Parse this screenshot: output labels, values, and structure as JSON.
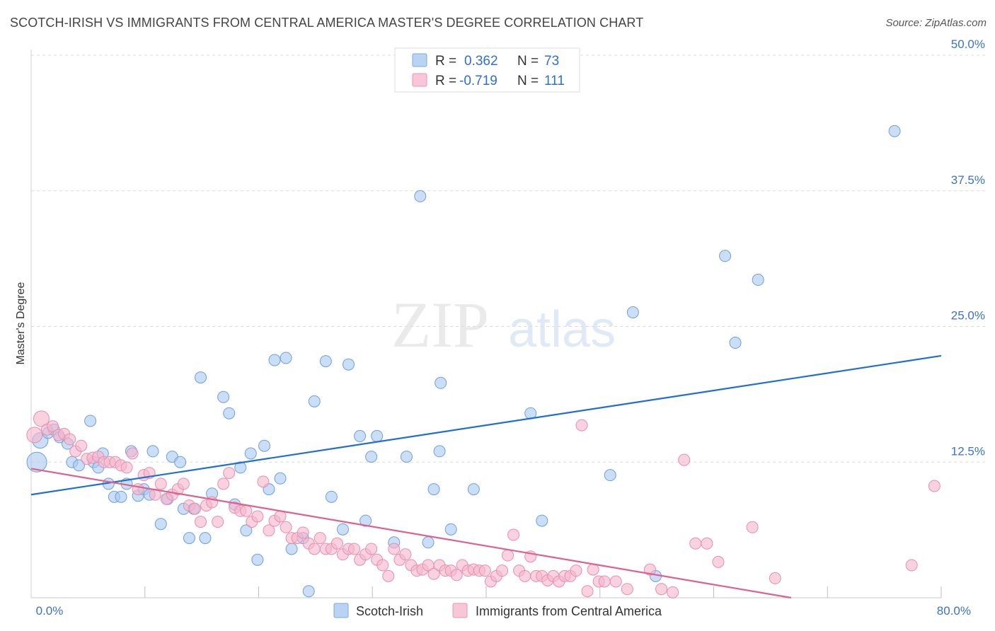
{
  "title": "SCOTCH-IRISH VS IMMIGRANTS FROM CENTRAL AMERICA MASTER'S DEGREE CORRELATION CHART",
  "source": "Source: ZipAtlas.com",
  "watermark": {
    "zip": "ZIP",
    "atlas": "atlas"
  },
  "colors": {
    "blue": "#1f6fd1",
    "blue_fill": "#a9c9f0",
    "pink": "#e0608c",
    "pink_fill": "#f4b6cb",
    "axis_value": "#3b73c4"
  },
  "legend_top": [
    {
      "r_label": "R =",
      "r_value": "0.362",
      "n_label": "N =",
      "n_value": "73"
    },
    {
      "r_label": "R =",
      "r_value": "-0.719",
      "n_label": "N =",
      "n_value": "111"
    }
  ],
  "chart_data": {
    "type": "scatter",
    "ylabel": "Master's Degree",
    "xlim": [
      0,
      80
    ],
    "ylim": [
      0,
      50
    ],
    "x_tick_labels": [
      "0.0%",
      "80.0%"
    ],
    "y_ticks": [
      12.5,
      25.0,
      37.5,
      50.0
    ],
    "y_tick_labels": [
      "12.5%",
      "25.0%",
      "37.5%",
      "50.0%"
    ],
    "grid": true,
    "legend_position": "bottom",
    "series": [
      {
        "name": "Scotch-Irish",
        "color": "blue",
        "trend": {
          "x": [
            0,
            80
          ],
          "y": [
            9.5,
            22.3
          ]
        },
        "points": [
          [
            0.5,
            12.5
          ],
          [
            0.8,
            14.5
          ],
          [
            1.5,
            15.2
          ],
          [
            2.0,
            15.5
          ],
          [
            2.5,
            14.8
          ],
          [
            3.2,
            14.2
          ],
          [
            3.6,
            12.5
          ],
          [
            4.2,
            12.2
          ],
          [
            5.2,
            16.3
          ],
          [
            5.5,
            12.5
          ],
          [
            5.9,
            12.0
          ],
          [
            6.3,
            13.3
          ],
          [
            6.8,
            10.5
          ],
          [
            7.3,
            9.3
          ],
          [
            7.9,
            9.3
          ],
          [
            8.4,
            10.5
          ],
          [
            8.8,
            13.5
          ],
          [
            9.4,
            9.4
          ],
          [
            9.9,
            10.0
          ],
          [
            10.4,
            9.5
          ],
          [
            10.7,
            13.5
          ],
          [
            11.4,
            6.8
          ],
          [
            12.0,
            9.1
          ],
          [
            12.4,
            13.0
          ],
          [
            13.1,
            12.5
          ],
          [
            13.4,
            8.2
          ],
          [
            13.9,
            5.5
          ],
          [
            14.3,
            8.2
          ],
          [
            14.9,
            20.3
          ],
          [
            15.3,
            5.5
          ],
          [
            15.9,
            9.6
          ],
          [
            16.9,
            18.5
          ],
          [
            17.4,
            17.0
          ],
          [
            17.9,
            8.6
          ],
          [
            18.4,
            12.0
          ],
          [
            18.9,
            6.2
          ],
          [
            19.3,
            13.3
          ],
          [
            19.9,
            3.5
          ],
          [
            20.5,
            14.0
          ],
          [
            20.9,
            10.0
          ],
          [
            21.4,
            21.9
          ],
          [
            21.9,
            11.0
          ],
          [
            22.4,
            22.1
          ],
          [
            22.9,
            4.5
          ],
          [
            23.9,
            5.5
          ],
          [
            24.4,
            0.6
          ],
          [
            24.9,
            18.1
          ],
          [
            25.9,
            21.8
          ],
          [
            26.4,
            9.3
          ],
          [
            27.4,
            6.3
          ],
          [
            27.9,
            21.5
          ],
          [
            28.9,
            14.9
          ],
          [
            29.4,
            7.1
          ],
          [
            29.9,
            13.0
          ],
          [
            30.4,
            14.9
          ],
          [
            31.9,
            5.1
          ],
          [
            33.0,
            13.0
          ],
          [
            34.2,
            37.0
          ],
          [
            34.9,
            5.1
          ],
          [
            35.9,
            13.5
          ],
          [
            35.4,
            10.0
          ],
          [
            36.9,
            6.3
          ],
          [
            36.0,
            19.8
          ],
          [
            38.9,
            10.0
          ],
          [
            43.9,
            17.0
          ],
          [
            44.9,
            7.1
          ],
          [
            50.9,
            11.3
          ],
          [
            52.9,
            26.3
          ],
          [
            54.9,
            2.0
          ],
          [
            61.9,
            23.5
          ],
          [
            63.9,
            29.3
          ],
          [
            75.9,
            43.0
          ],
          [
            61.0,
            31.5
          ]
        ]
      },
      {
        "name": "Immigrants from Central America",
        "color": "pink",
        "trend": {
          "x": [
            0,
            66.8
          ],
          "y": [
            11.9,
            0.0
          ]
        },
        "points": [
          [
            0.3,
            15.0
          ],
          [
            0.9,
            16.5
          ],
          [
            1.4,
            15.5
          ],
          [
            1.9,
            15.8
          ],
          [
            2.4,
            15.0
          ],
          [
            2.9,
            15.1
          ],
          [
            3.4,
            14.6
          ],
          [
            3.9,
            13.5
          ],
          [
            4.4,
            14.0
          ],
          [
            4.9,
            12.8
          ],
          [
            5.4,
            12.9
          ],
          [
            5.9,
            13.0
          ],
          [
            6.4,
            12.5
          ],
          [
            6.9,
            12.5
          ],
          [
            7.4,
            12.5
          ],
          [
            7.9,
            12.2
          ],
          [
            8.4,
            12.0
          ],
          [
            8.9,
            13.3
          ],
          [
            9.4,
            10.0
          ],
          [
            9.9,
            11.3
          ],
          [
            10.4,
            11.5
          ],
          [
            10.9,
            9.5
          ],
          [
            11.4,
            10.5
          ],
          [
            11.9,
            9.1
          ],
          [
            12.4,
            9.5
          ],
          [
            12.9,
            10.0
          ],
          [
            13.4,
            10.5
          ],
          [
            13.9,
            8.5
          ],
          [
            14.4,
            8.2
          ],
          [
            14.9,
            7.0
          ],
          [
            15.4,
            8.5
          ],
          [
            15.9,
            8.8
          ],
          [
            16.4,
            7.0
          ],
          [
            16.9,
            10.5
          ],
          [
            17.4,
            11.5
          ],
          [
            17.9,
            8.3
          ],
          [
            18.4,
            8.0
          ],
          [
            18.9,
            8.0
          ],
          [
            19.4,
            7.0
          ],
          [
            19.9,
            7.5
          ],
          [
            20.4,
            10.7
          ],
          [
            20.9,
            6.2
          ],
          [
            21.4,
            7.1
          ],
          [
            21.9,
            7.5
          ],
          [
            22.4,
            6.5
          ],
          [
            22.9,
            5.5
          ],
          [
            23.4,
            5.5
          ],
          [
            23.9,
            6.0
          ],
          [
            24.4,
            5.0
          ],
          [
            24.9,
            4.5
          ],
          [
            25.4,
            5.5
          ],
          [
            25.9,
            4.5
          ],
          [
            26.4,
            4.5
          ],
          [
            26.9,
            5.0
          ],
          [
            27.4,
            4.0
          ],
          [
            27.9,
            4.5
          ],
          [
            28.4,
            4.5
          ],
          [
            28.9,
            3.5
          ],
          [
            29.4,
            4.0
          ],
          [
            29.9,
            4.5
          ],
          [
            30.4,
            3.5
          ],
          [
            30.9,
            3.0
          ],
          [
            31.4,
            2.0
          ],
          [
            31.9,
            4.5
          ],
          [
            32.4,
            3.5
          ],
          [
            32.9,
            4.0
          ],
          [
            33.4,
            3.0
          ],
          [
            33.9,
            2.5
          ],
          [
            34.4,
            2.6
          ],
          [
            34.9,
            3.0
          ],
          [
            35.4,
            2.2
          ],
          [
            35.9,
            3.0
          ],
          [
            36.4,
            2.5
          ],
          [
            36.9,
            2.5
          ],
          [
            37.4,
            2.1
          ],
          [
            37.9,
            3.0
          ],
          [
            38.4,
            2.5
          ],
          [
            38.9,
            2.6
          ],
          [
            39.4,
            2.5
          ],
          [
            39.9,
            2.5
          ],
          [
            40.4,
            1.5
          ],
          [
            40.9,
            2.0
          ],
          [
            41.4,
            2.5
          ],
          [
            41.9,
            3.9
          ],
          [
            42.4,
            5.8
          ],
          [
            42.9,
            2.5
          ],
          [
            43.4,
            2.0
          ],
          [
            43.9,
            3.8
          ],
          [
            44.4,
            2.0
          ],
          [
            44.9,
            2.0
          ],
          [
            45.4,
            1.6
          ],
          [
            45.9,
            2.0
          ],
          [
            46.4,
            1.5
          ],
          [
            46.9,
            2.0
          ],
          [
            47.4,
            2.0
          ],
          [
            47.9,
            2.5
          ],
          [
            48.4,
            15.9
          ],
          [
            48.9,
            0.6
          ],
          [
            49.4,
            2.6
          ],
          [
            49.9,
            1.5
          ],
          [
            50.4,
            1.5
          ],
          [
            51.4,
            1.5
          ],
          [
            52.4,
            0.8
          ],
          [
            54.4,
            2.6
          ],
          [
            55.4,
            0.8
          ],
          [
            56.4,
            0.5
          ],
          [
            57.4,
            12.7
          ],
          [
            58.4,
            5.0
          ],
          [
            59.4,
            5.0
          ],
          [
            60.4,
            3.3
          ],
          [
            63.4,
            6.5
          ],
          [
            65.4,
            1.8
          ],
          [
            77.4,
            3.0
          ],
          [
            79.4,
            10.3
          ]
        ]
      }
    ]
  }
}
